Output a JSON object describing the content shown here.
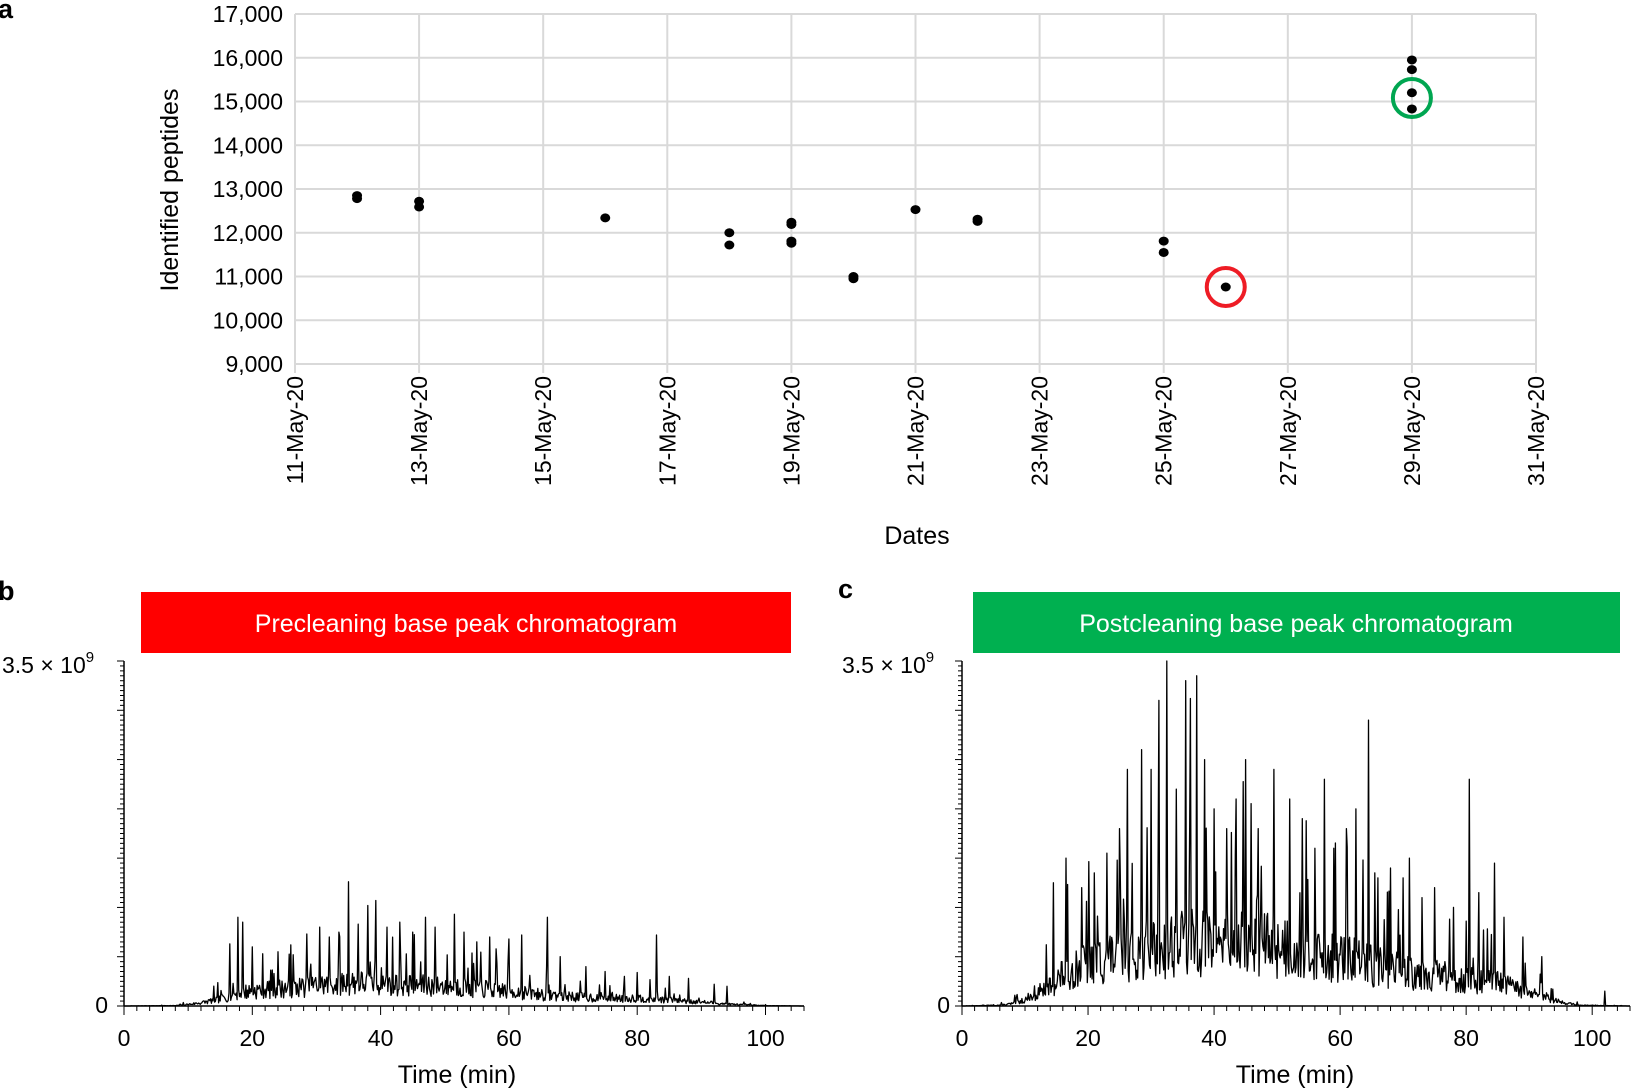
{
  "panels": [
    {
      "id": "a",
      "letter": "a"
    },
    {
      "id": "b",
      "letter": "b"
    },
    {
      "id": "c",
      "letter": "c"
    }
  ],
  "chart_data": [
    {
      "panel": "a",
      "type": "scatter",
      "xlabel": "Dates",
      "ylabel": "Identified peptides",
      "xlim": [
        0,
        20
      ],
      "ylim": [
        9000,
        17000
      ],
      "x_ticks": [
        {
          "day": 0,
          "label": "11-May-20"
        },
        {
          "day": 2,
          "label": "13-May-20"
        },
        {
          "day": 4,
          "label": "15-May-20"
        },
        {
          "day": 6,
          "label": "17-May-20"
        },
        {
          "day": 8,
          "label": "19-May-20"
        },
        {
          "day": 10,
          "label": "21-May-20"
        },
        {
          "day": 12,
          "label": "23-May-20"
        },
        {
          "day": 14,
          "label": "25-May-20"
        },
        {
          "day": 16,
          "label": "27-May-20"
        },
        {
          "day": 18,
          "label": "29-May-20"
        },
        {
          "day": 20,
          "label": "31-May-20"
        }
      ],
      "y_ticks": [
        {
          "value": 9000,
          "label": "9,000"
        },
        {
          "value": 10000,
          "label": "10,000"
        },
        {
          "value": 11000,
          "label": "11,000"
        },
        {
          "value": 12000,
          "label": "12,000"
        },
        {
          "value": 13000,
          "label": "13,000"
        },
        {
          "value": 14000,
          "label": "14,000"
        },
        {
          "value": 15000,
          "label": "15,000"
        },
        {
          "value": 16000,
          "label": "16,000"
        },
        {
          "value": 17000,
          "label": "17,000"
        }
      ],
      "points": [
        {
          "day": 1,
          "value": 12850
        },
        {
          "day": 1,
          "value": 12780
        },
        {
          "day": 2,
          "value": 12720
        },
        {
          "day": 2,
          "value": 12590
        },
        {
          "day": 5,
          "value": 12340
        },
        {
          "day": 7,
          "value": 12000
        },
        {
          "day": 7,
          "value": 11720
        },
        {
          "day": 8,
          "value": 12240
        },
        {
          "day": 8,
          "value": 12190
        },
        {
          "day": 8,
          "value": 11810
        },
        {
          "day": 8,
          "value": 11760
        },
        {
          "day": 9,
          "value": 11000
        },
        {
          "day": 9,
          "value": 10950
        },
        {
          "day": 10,
          "value": 12530
        },
        {
          "day": 11,
          "value": 12310
        },
        {
          "day": 11,
          "value": 12260
        },
        {
          "day": 14,
          "value": 11810
        },
        {
          "day": 14,
          "value": 11550
        },
        {
          "day": 15,
          "value": 10760
        },
        {
          "day": 18,
          "value": 15950
        },
        {
          "day": 18,
          "value": 15730
        },
        {
          "day": 18,
          "value": 15200
        },
        {
          "day": 18,
          "value": 14830
        }
      ],
      "highlights": [
        {
          "name": "precleaning-circle",
          "day": 15,
          "value": 10760,
          "color": "#ee1c25"
        },
        {
          "name": "postcleaning-circle",
          "day": 18,
          "value": 15080,
          "color": "#00a651"
        }
      ]
    },
    {
      "panel": "b",
      "type": "line",
      "title": "Precleaning base peak chromatogram",
      "title_bg": "#ff0000",
      "xlabel": "Time (min)",
      "xlim": [
        0,
        106
      ],
      "ylim": [
        0,
        3.5
      ],
      "y_unit_exp": 9,
      "y_top_label": "3.5 × 10",
      "y_top_exp": "9",
      "y_zero_label": "0",
      "x_ticks": [
        0,
        20,
        40,
        60,
        80,
        100
      ],
      "profile": [
        [
          0,
          0
        ],
        [
          8,
          0.005
        ],
        [
          10,
          0.02
        ],
        [
          12,
          0.04
        ],
        [
          15,
          0.09
        ],
        [
          18,
          0.17
        ],
        [
          22,
          0.21
        ],
        [
          26,
          0.23
        ],
        [
          30,
          0.26
        ],
        [
          35,
          0.3
        ],
        [
          40,
          0.29
        ],
        [
          45,
          0.27
        ],
        [
          50,
          0.26
        ],
        [
          55,
          0.23
        ],
        [
          60,
          0.19
        ],
        [
          65,
          0.15
        ],
        [
          70,
          0.12
        ],
        [
          75,
          0.1
        ],
        [
          80,
          0.1
        ],
        [
          85,
          0.08
        ],
        [
          90,
          0.05
        ],
        [
          95,
          0.02
        ],
        [
          100,
          0.005
        ],
        [
          106,
          0
        ]
      ],
      "spikes": [
        [
          16.5,
          0.63
        ],
        [
          17.7,
          0.9
        ],
        [
          18.5,
          0.85
        ],
        [
          20,
          0.6
        ],
        [
          24,
          0.55
        ],
        [
          26,
          0.62
        ],
        [
          28.5,
          0.73
        ],
        [
          30.5,
          0.8
        ],
        [
          32,
          0.7
        ],
        [
          33.5,
          0.75
        ],
        [
          35,
          1.26
        ],
        [
          36.5,
          0.83
        ],
        [
          38,
          1.02
        ],
        [
          39.2,
          1.07
        ],
        [
          41,
          0.8
        ],
        [
          43,
          0.85
        ],
        [
          45,
          0.75
        ],
        [
          47,
          0.9
        ],
        [
          48.5,
          0.8
        ],
        [
          51.5,
          0.93
        ],
        [
          53,
          0.75
        ],
        [
          55,
          0.65
        ],
        [
          57,
          0.7
        ],
        [
          60,
          0.68
        ],
        [
          62,
          0.72
        ],
        [
          66,
          0.9
        ],
        [
          68,
          0.5
        ],
        [
          72,
          0.4
        ],
        [
          75,
          0.35
        ],
        [
          78,
          0.3
        ],
        [
          80,
          0.34
        ],
        [
          83,
          0.72
        ],
        [
          85,
          0.3
        ],
        [
          88,
          0.28
        ],
        [
          92,
          0.22
        ],
        [
          94,
          0.2
        ]
      ],
      "noise_seed": 7
    },
    {
      "panel": "c",
      "type": "line",
      "title": "Postcleaning base peak chromatogram",
      "title_bg": "#00b050",
      "xlabel": "Time (min)",
      "xlim": [
        0,
        106
      ],
      "ylim": [
        0,
        3.5
      ],
      "y_unit_exp": 9,
      "y_top_label": "3.5 × 10",
      "y_top_exp": "9",
      "y_zero_label": "0",
      "x_ticks": [
        0,
        20,
        40,
        60,
        80,
        100
      ],
      "profile": [
        [
          0,
          0
        ],
        [
          6,
          0.01
        ],
        [
          8,
          0.03
        ],
        [
          10,
          0.08
        ],
        [
          12,
          0.15
        ],
        [
          14,
          0.25
        ],
        [
          16,
          0.4
        ],
        [
          20,
          0.55
        ],
        [
          25,
          0.65
        ],
        [
          30,
          0.75
        ],
        [
          35,
          0.82
        ],
        [
          40,
          0.85
        ],
        [
          45,
          0.82
        ],
        [
          50,
          0.78
        ],
        [
          55,
          0.7
        ],
        [
          60,
          0.62
        ],
        [
          65,
          0.55
        ],
        [
          70,
          0.48
        ],
        [
          75,
          0.4
        ],
        [
          80,
          0.35
        ],
        [
          85,
          0.3
        ],
        [
          88,
          0.22
        ],
        [
          92,
          0.12
        ],
        [
          95,
          0.05
        ],
        [
          98,
          0.01
        ],
        [
          106,
          0
        ]
      ],
      "spikes": [
        [
          14.5,
          1.25
        ],
        [
          16.5,
          1.5
        ],
        [
          19,
          1.2
        ],
        [
          21,
          1.35
        ],
        [
          23,
          1.55
        ],
        [
          25,
          1.8
        ],
        [
          26.2,
          2.4
        ],
        [
          28.5,
          2.6
        ],
        [
          30,
          2.4
        ],
        [
          31.3,
          3.1
        ],
        [
          32.5,
          3.5
        ],
        [
          34,
          2.2
        ],
        [
          35.5,
          3.3
        ],
        [
          36.3,
          3.12
        ],
        [
          37.3,
          3.35
        ],
        [
          38.5,
          2.5
        ],
        [
          40,
          2.0
        ],
        [
          42,
          1.8
        ],
        [
          43.5,
          2.1
        ],
        [
          45,
          2.5
        ],
        [
          47,
          1.8
        ],
        [
          49.5,
          2.4
        ],
        [
          52,
          2.1
        ],
        [
          54,
          1.9
        ],
        [
          56,
          1.6
        ],
        [
          57.5,
          2.3
        ],
        [
          59,
          1.6
        ],
        [
          61,
          1.8
        ],
        [
          62.5,
          2.0
        ],
        [
          64.5,
          2.9
        ],
        [
          66,
          1.3
        ],
        [
          68,
          1.4
        ],
        [
          70,
          1.3
        ],
        [
          71,
          1.5
        ],
        [
          73,
          1.1
        ],
        [
          75,
          1.2
        ],
        [
          78,
          1.0
        ],
        [
          80.5,
          2.3
        ],
        [
          82,
          1.15
        ],
        [
          84.5,
          1.45
        ],
        [
          86,
          0.9
        ],
        [
          89,
          0.7
        ],
        [
          92,
          0.5
        ],
        [
          102,
          0.15
        ]
      ],
      "noise_seed": 13
    }
  ]
}
